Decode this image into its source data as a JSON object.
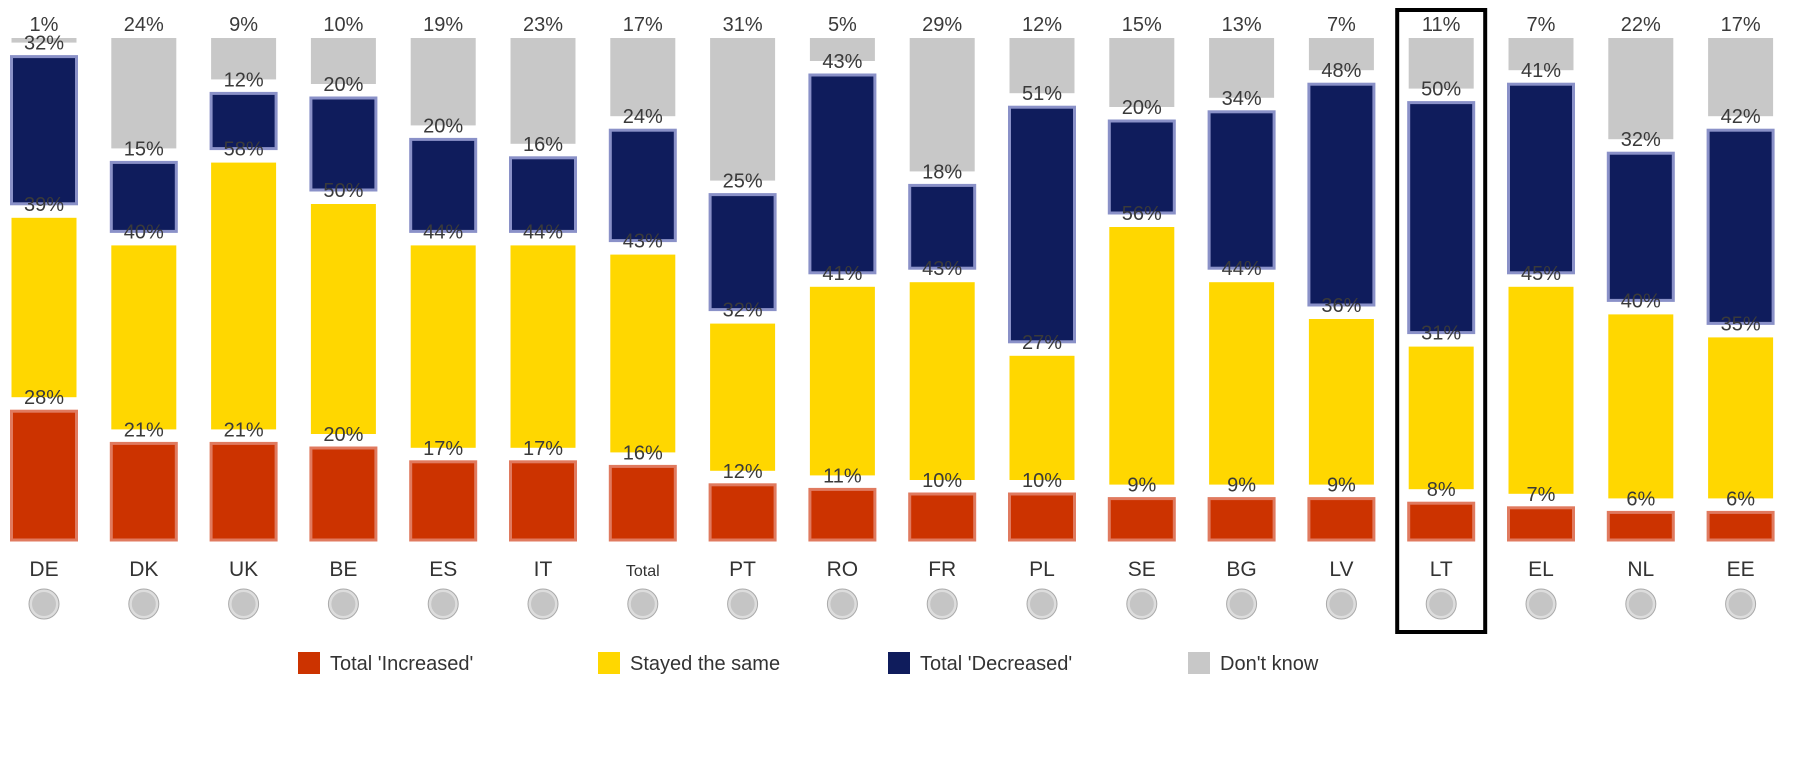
{
  "chart_data": {
    "type": "bar",
    "stacked": true,
    "categories": [
      "DE",
      "DK",
      "UK",
      "BE",
      "ES",
      "IT",
      "Total",
      "PT",
      "RO",
      "FR",
      "PL",
      "SE",
      "BG",
      "LV",
      "LT",
      "EL",
      "NL",
      "EE"
    ],
    "highlighted_category": "LT",
    "series": [
      {
        "name": "Total 'Increased'",
        "color": "#cc3300",
        "values": [
          28,
          21,
          21,
          20,
          17,
          17,
          16,
          12,
          11,
          10,
          10,
          9,
          9,
          9,
          8,
          7,
          6,
          6
        ]
      },
      {
        "name": "Stayed the same",
        "color": "#ffd700",
        "values": [
          39,
          40,
          58,
          50,
          44,
          44,
          43,
          32,
          41,
          43,
          27,
          56,
          44,
          36,
          31,
          45,
          40,
          35
        ]
      },
      {
        "name": "Total 'Decreased'",
        "color": "#0f1c5c",
        "values": [
          32,
          15,
          12,
          20,
          20,
          16,
          24,
          25,
          43,
          18,
          51,
          20,
          34,
          48,
          50,
          41,
          32,
          42
        ]
      },
      {
        "name": "Don't know",
        "color": "#c8c8c8",
        "values": [
          1,
          24,
          9,
          10,
          19,
          23,
          17,
          31,
          5,
          29,
          12,
          15,
          13,
          7,
          11,
          7,
          22,
          17
        ]
      }
    ],
    "value_suffix": "%",
    "legend_position": "bottom",
    "icons": [
      "flag-de-icon",
      "flag-dk-icon",
      "flag-uk-icon",
      "flag-be-icon",
      "flag-es-icon",
      "flag-it-icon",
      "flag-eu-icon",
      "flag-pt-icon",
      "flag-ro-icon",
      "flag-fr-icon",
      "flag-pl-icon",
      "flag-se-icon",
      "flag-bg-icon",
      "flag-lv-icon",
      "flag-lt-icon",
      "flag-el-icon",
      "flag-nl-icon",
      "flag-ee-icon"
    ]
  }
}
